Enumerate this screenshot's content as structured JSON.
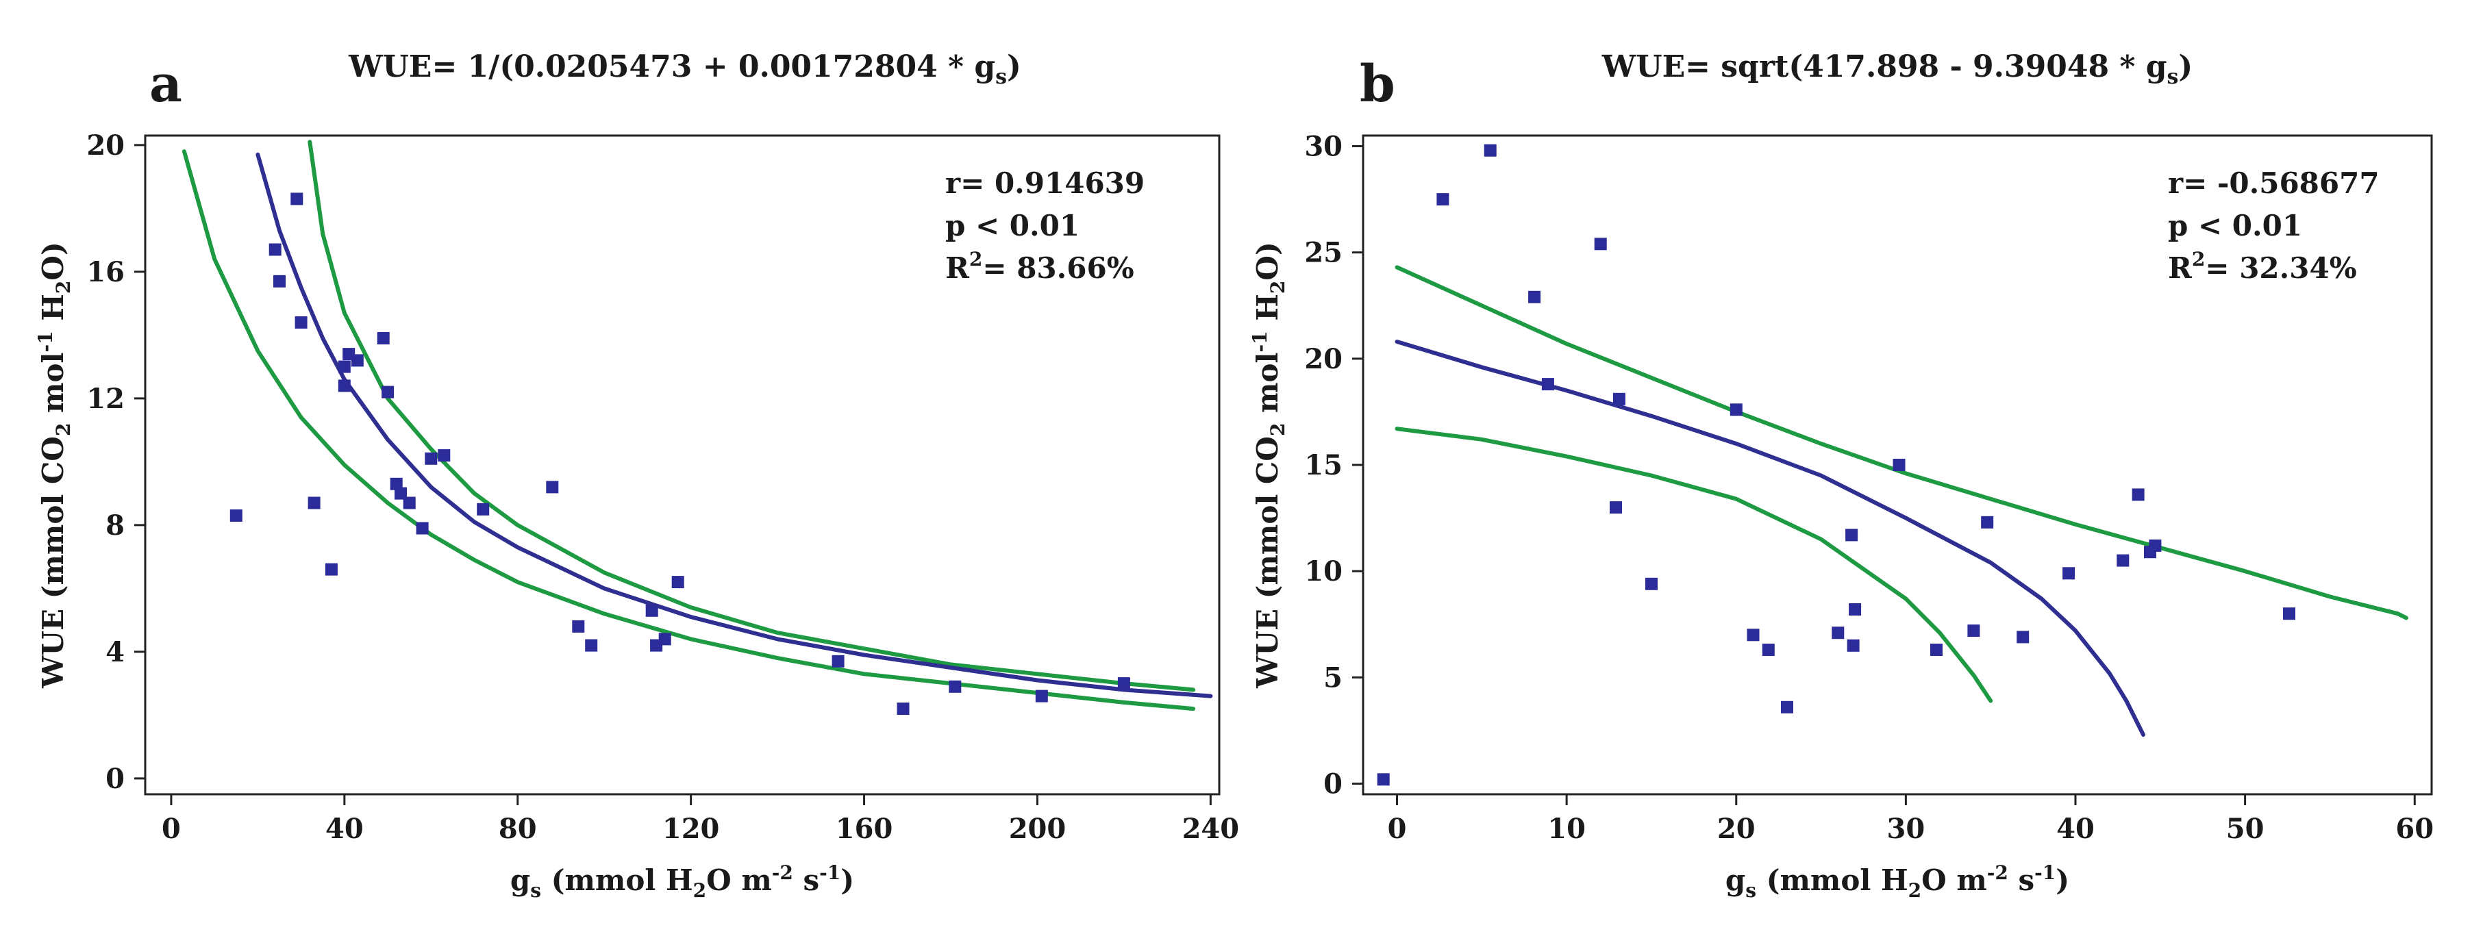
{
  "colors": {
    "points": "#2b2b9a",
    "fit": "#2f2f92",
    "confidence": "#1d9a42",
    "axes": "#222222"
  },
  "chart_data": [
    {
      "panel": "a",
      "type": "scatter",
      "title_prefix": "WUE= 1/(0.0205473 + 0.00172804 * g",
      "title_sub": "s",
      "title_suffix": ")",
      "xlabel": {
        "prefix": "g",
        "sub": "s",
        "mid1": " (mmol H",
        "sub2": "2",
        "mid2": "O m",
        "sup1": "-2",
        "mid3": " s",
        "sup2": "-1",
        "suffix": ")"
      },
      "ylabel": {
        "prefix": "WUE (mmol CO",
        "sub1": "2",
        "mid": " mol",
        "sup": "-1",
        "mid2": " H",
        "sub2": "2",
        "suffix": "O)"
      },
      "xlim": [
        -6,
        242
      ],
      "ylim": [
        -0.5,
        20.3
      ],
      "xticks": [
        0,
        40,
        80,
        120,
        160,
        200,
        240
      ],
      "yticks": [
        0,
        4,
        8,
        12,
        16,
        20
      ],
      "stats": {
        "r": "r= 0.914639",
        "p": "p < 0.01",
        "r2_prefix": "R",
        "r2_sup": "2",
        "r2_value": "= 83.66%"
      },
      "points": {
        "x": [
          15,
          24,
          25,
          29,
          30,
          33,
          37,
          40,
          40,
          41,
          43,
          49,
          50,
          52,
          53,
          55,
          58,
          60,
          63,
          72,
          88,
          94,
          97,
          111,
          112,
          114,
          117,
          154,
          169,
          181,
          201,
          220
        ],
        "y": [
          8.3,
          16.7,
          15.7,
          18.3,
          14.4,
          8.7,
          6.6,
          13.0,
          12.4,
          13.4,
          13.2,
          13.9,
          12.2,
          9.3,
          9.0,
          8.7,
          7.9,
          10.1,
          10.2,
          8.5,
          9.2,
          4.8,
          4.2,
          5.3,
          4.2,
          4.4,
          6.2,
          3.7,
          2.2,
          2.9,
          2.6,
          3.0
        ]
      },
      "fit": {
        "x": [
          20,
          25,
          30,
          35,
          40,
          50,
          60,
          70,
          80,
          100,
          120,
          140,
          160,
          180,
          200,
          220,
          240
        ],
        "y": [
          19.7,
          17.3,
          15.5,
          13.9,
          12.6,
          10.7,
          9.2,
          8.1,
          7.3,
          6.0,
          5.1,
          4.4,
          3.9,
          3.5,
          3.1,
          2.8,
          2.6
        ]
      },
      "ci_upper": {
        "x": [
          32,
          35,
          40,
          50,
          60,
          70,
          80,
          100,
          120,
          140,
          160,
          180,
          200,
          220,
          236
        ],
        "y": [
          20.1,
          17.2,
          14.7,
          12.0,
          10.4,
          9.0,
          8.0,
          6.5,
          5.4,
          4.6,
          4.1,
          3.6,
          3.3,
          3.0,
          2.8
        ]
      },
      "ci_lower": {
        "x": [
          3,
          10,
          20,
          30,
          40,
          50,
          60,
          70,
          80,
          100,
          120,
          140,
          160,
          180,
          200,
          220,
          236
        ],
        "y": [
          19.8,
          16.4,
          13.5,
          11.4,
          9.9,
          8.7,
          7.7,
          6.9,
          6.2,
          5.2,
          4.4,
          3.8,
          3.3,
          3.0,
          2.7,
          2.4,
          2.2
        ]
      }
    },
    {
      "panel": "b",
      "type": "scatter",
      "title_prefix": "WUE= sqrt(417.898 - 9.39048 * g",
      "title_sub": "s",
      "title_suffix": ")",
      "xlabel": {
        "prefix": "g",
        "sub": "s",
        "mid1": " (mmol H",
        "sub2": "2",
        "mid2": "O m",
        "sup1": "-2",
        "mid3": " s",
        "sup2": "-1",
        "suffix": ")"
      },
      "ylabel": {
        "prefix": "WUE (mmol CO",
        "sub1": "2",
        "mid": " mol",
        "sup": "-1",
        "mid2": " H",
        "sub2": "2",
        "suffix": "O)"
      },
      "xlim": [
        -2,
        61
      ],
      "ylim": [
        -0.5,
        30.5
      ],
      "xticks": [
        0,
        10,
        20,
        30,
        40,
        50,
        60
      ],
      "yticks": [
        0,
        5,
        10,
        15,
        20,
        25,
        30
      ],
      "stats": {
        "r": "r= -0.568677",
        "p": "p < 0.01",
        "r2_prefix": "R",
        "r2_sup": "2",
        "r2_value": "= 32.34%"
      },
      "points": {
        "x": [
          -0.8,
          2.7,
          5.5,
          8.1,
          8.9,
          12,
          12.9,
          13.1,
          15,
          20,
          21,
          21.9,
          23,
          26,
          26.8,
          26.9,
          27,
          29.6,
          31.8,
          34,
          34.8,
          36.9,
          39.6,
          42.8,
          43.7,
          44.4,
          44.7,
          52.6
        ],
        "y": [
          0.2,
          27.5,
          29.8,
          22.9,
          18.8,
          25.4,
          13.0,
          18.1,
          9.4,
          17.6,
          7.0,
          6.3,
          3.6,
          7.1,
          11.7,
          6.5,
          8.2,
          15.0,
          6.3,
          7.2,
          12.3,
          6.9,
          9.9,
          10.5,
          13.6,
          10.9,
          11.2,
          8.0
        ]
      },
      "fit": {
        "x": [
          0,
          5,
          10,
          15,
          20,
          25,
          30,
          35,
          38,
          40,
          42,
          43,
          44
        ],
        "y": [
          20.8,
          19.6,
          18.5,
          17.3,
          16.0,
          14.5,
          12.5,
          10.4,
          8.7,
          7.2,
          5.2,
          3.9,
          2.3
        ]
      },
      "ci_upper": {
        "x": [
          0,
          5,
          10,
          15,
          20,
          25,
          30,
          35,
          40,
          45,
          50,
          55,
          59,
          59.5
        ],
        "y": [
          24.3,
          22.5,
          20.7,
          19.1,
          17.5,
          16.0,
          14.6,
          13.4,
          12.2,
          11.1,
          10.0,
          8.8,
          8.0,
          7.8
        ]
      },
      "ci_lower": {
        "x": [
          0,
          5,
          10,
          15,
          20,
          25,
          30,
          32,
          34,
          35
        ],
        "y": [
          16.7,
          16.2,
          15.4,
          14.5,
          13.4,
          11.5,
          8.7,
          7.1,
          5.1,
          3.9
        ]
      }
    }
  ]
}
